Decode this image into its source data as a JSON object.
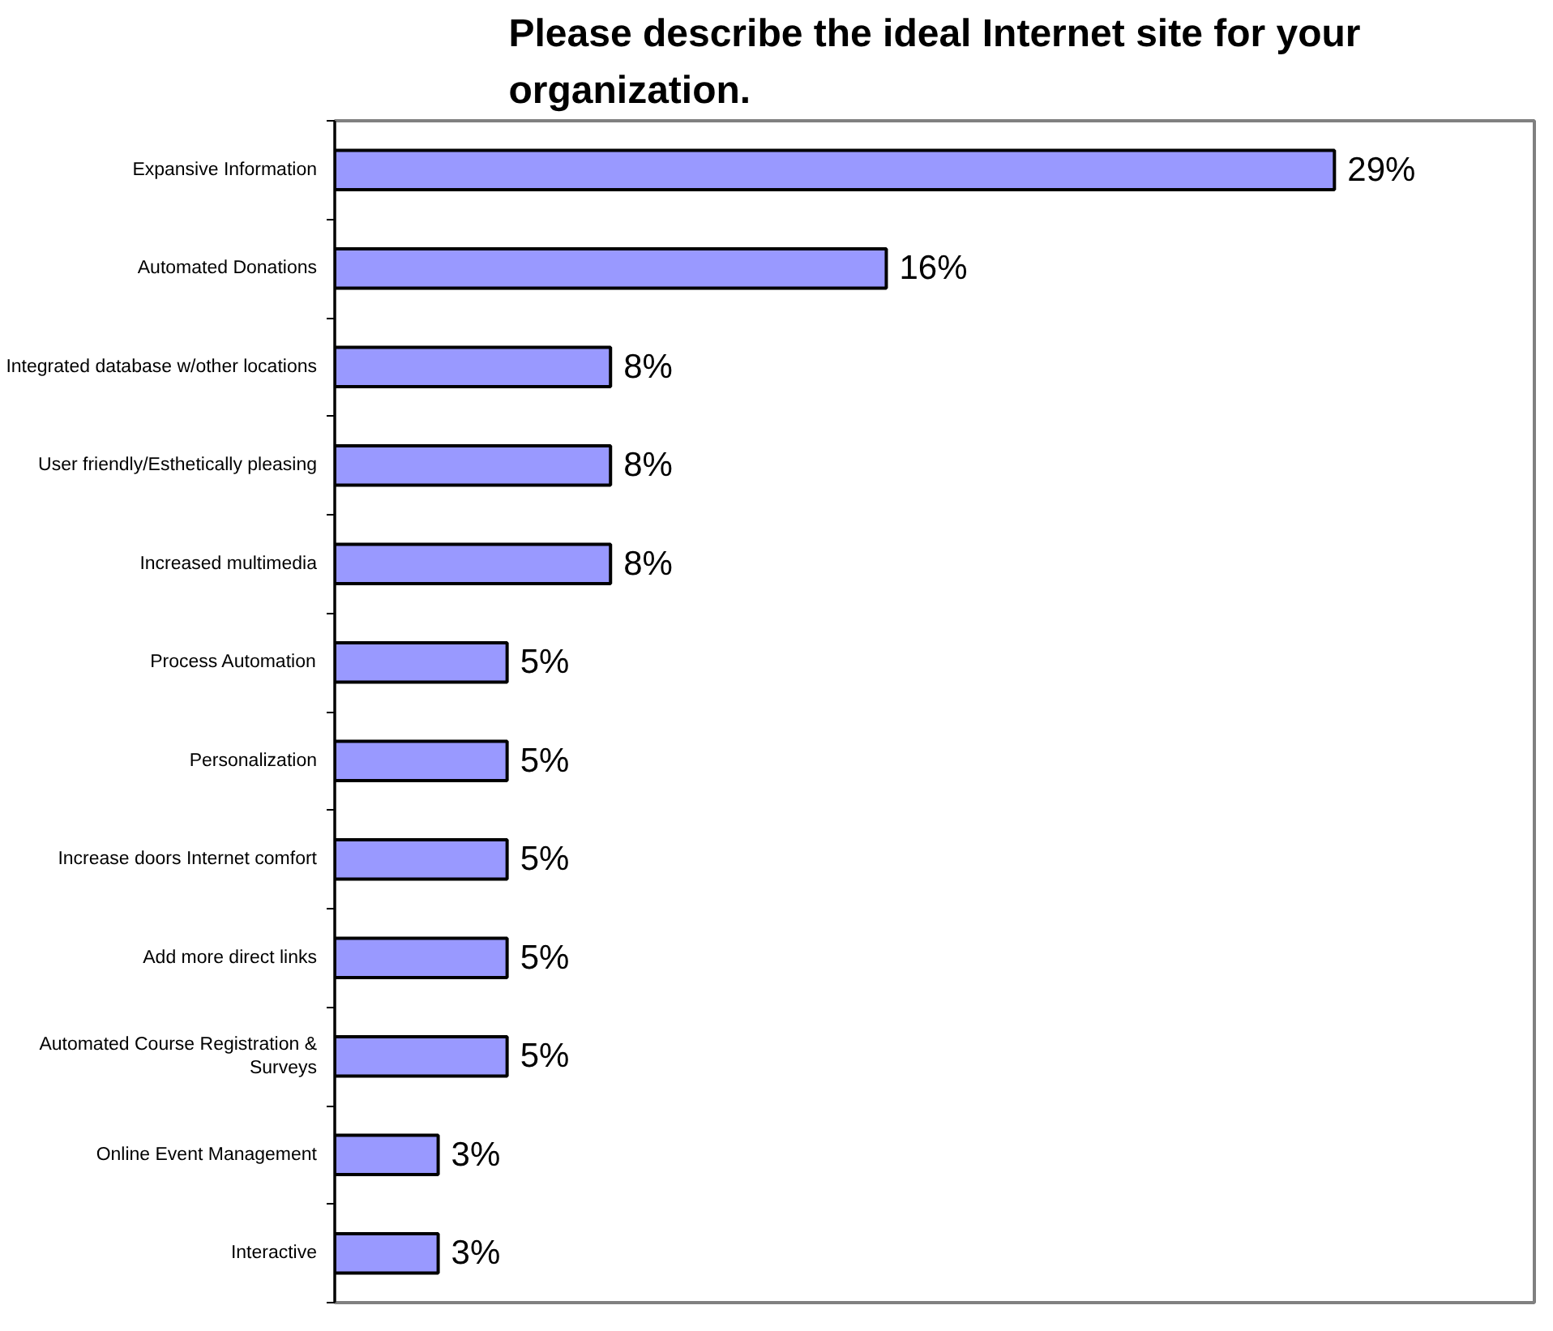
{
  "chart_data": {
    "type": "bar",
    "orientation": "horizontal",
    "title": "Please describe the ideal Internet site for your organization.",
    "categories": [
      "Expansive Information",
      "Automated Donations",
      "Integrated database w/other locations",
      "User friendly/Esthetically pleasing",
      "Increased multimedia",
      "Process Automation",
      "Personalization",
      "Increase doors Internet comfort",
      "Add more direct links",
      "Automated Course Registration & Surveys",
      "Online Event Management",
      "Interactive"
    ],
    "values": [
      29,
      16,
      8,
      8,
      8,
      5,
      5,
      5,
      5,
      5,
      3,
      3
    ],
    "value_labels": [
      "29%",
      "16%",
      "8%",
      "8%",
      "8%",
      "5%",
      "5%",
      "5%",
      "5%",
      "5%",
      "3%",
      "3%"
    ],
    "color": "#9999ff",
    "grid": false
  }
}
